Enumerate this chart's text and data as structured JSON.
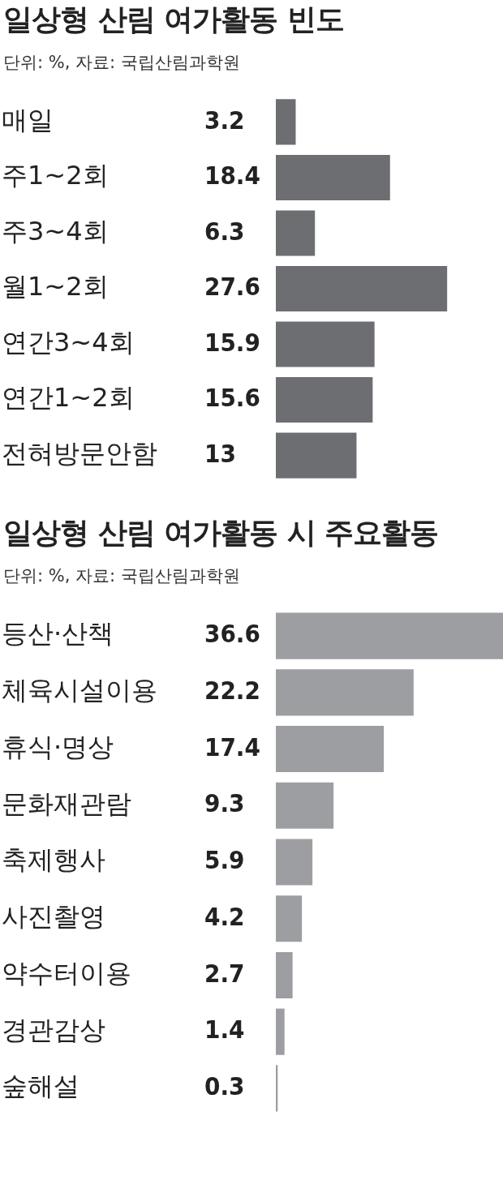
{
  "chart_data": [
    {
      "type": "bar",
      "orientation": "horizontal",
      "title": "일상형 산림 여가활동 빈도",
      "subtitle": "단위: %, 자료: 국립산림과학원",
      "categories": [
        "매일",
        "주1~2회",
        "주3~4회",
        "월1~2회",
        "연간3~4회",
        "연간1~2회",
        "전혀방문안함"
      ],
      "values": [
        3.2,
        18.4,
        6.3,
        27.6,
        15.9,
        15.6,
        13
      ],
      "color": "#6d6e71",
      "data_labels": true
    },
    {
      "type": "bar",
      "orientation": "horizontal",
      "title": "일상형 산림 여가활동 시 주요활동",
      "subtitle": "단위: %, 자료: 국립산림과학원",
      "categories": [
        "등산·산책",
        "체육시설이용",
        "휴식·명상",
        "문화재관람",
        "축제행사",
        "사진촬영",
        "약수터이용",
        "경관감상",
        "숲해설"
      ],
      "values": [
        36.6,
        22.2,
        17.4,
        9.3,
        5.9,
        4.2,
        2.7,
        1.4,
        0.3
      ],
      "color": "#9d9ea2",
      "data_labels": true
    }
  ]
}
